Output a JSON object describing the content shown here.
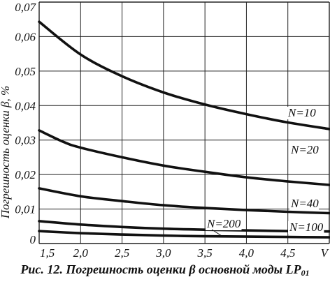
{
  "chart_data": {
    "type": "line",
    "ylabel": "Погрешность оценки β, %",
    "xlim": [
      1.5,
      5.0
    ],
    "ylim": [
      0,
      0.07
    ],
    "x_ticks": [
      {
        "value": 1.5,
        "label": "1,5"
      },
      {
        "value": 2.0,
        "label": "2,0"
      },
      {
        "value": 2.5,
        "label": "2,5"
      },
      {
        "value": 3.0,
        "label": "3,0"
      },
      {
        "value": 3.5,
        "label": "3,5"
      },
      {
        "value": 4.0,
        "label": "4,0"
      },
      {
        "value": 4.5,
        "label": "4,5"
      },
      {
        "value": 5.0,
        "label": "V"
      }
    ],
    "y_ticks": [
      {
        "value": 0,
        "label": "0"
      },
      {
        "value": 0.01,
        "label": "0,01"
      },
      {
        "value": 0.02,
        "label": "0,02"
      },
      {
        "value": 0.03,
        "label": "0,03"
      },
      {
        "value": 0.04,
        "label": "0,04"
      },
      {
        "value": 0.05,
        "label": "0,05"
      },
      {
        "value": 0.06,
        "label": "0,06"
      },
      {
        "value": 0.07,
        "label": "0,07"
      }
    ],
    "grid": true,
    "series": [
      {
        "name": "N=10",
        "x": [
          1.5,
          2.0,
          2.5,
          3.0,
          3.5,
          4.0,
          4.5,
          5.0
        ],
        "values": [
          0.0643,
          0.0548,
          0.0485,
          0.0438,
          0.0403,
          0.0375,
          0.0351,
          0.0332
        ]
      },
      {
        "name": "N=20",
        "x": [
          1.5,
          1.8,
          2.0,
          2.5,
          3.0,
          3.5,
          4.0,
          4.5,
          5.0
        ],
        "values": [
          0.0328,
          0.0294,
          0.0278,
          0.025,
          0.0226,
          0.0208,
          0.0192,
          0.018,
          0.017
        ]
      },
      {
        "name": "N=40",
        "x": [
          1.5,
          2.0,
          2.5,
          3.0,
          3.5,
          4.0,
          4.5,
          5.0
        ],
        "values": [
          0.016,
          0.0137,
          0.0123,
          0.0111,
          0.0103,
          0.0097,
          0.0092,
          0.0088
        ]
      },
      {
        "name": "N=100",
        "x": [
          1.5,
          2.0,
          2.5,
          3.0,
          3.5,
          4.0,
          4.5,
          5.0
        ],
        "values": [
          0.0065,
          0.0055,
          0.0048,
          0.0043,
          0.004,
          0.0038,
          0.0036,
          0.0035
        ]
      },
      {
        "name": "N=200",
        "x": [
          1.5,
          2.0,
          2.5,
          3.0,
          3.5,
          4.0,
          4.5,
          5.0
        ],
        "values": [
          0.0036,
          0.003,
          0.0026,
          0.0023,
          0.0021,
          0.002,
          0.0019,
          0.0018
        ]
      }
    ]
  },
  "caption": {
    "text": "Рис. 12. Погрешность оценки β основной моды LP",
    "subscript": "01"
  }
}
